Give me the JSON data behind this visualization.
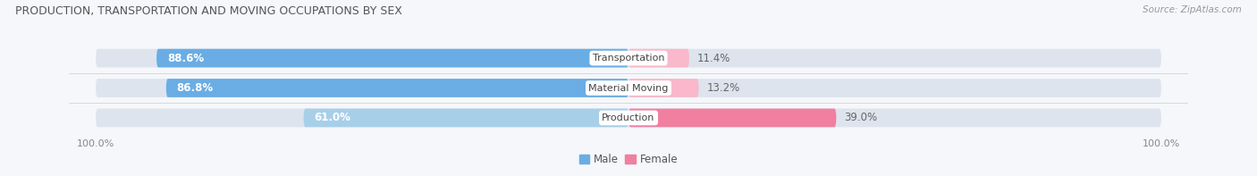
{
  "title": "PRODUCTION, TRANSPORTATION AND MOVING OCCUPATIONS BY SEX",
  "source": "Source: ZipAtlas.com",
  "categories": [
    "Transportation",
    "Material Moving",
    "Production"
  ],
  "male_pcts": [
    88.6,
    86.8,
    61.0
  ],
  "female_pcts": [
    11.4,
    13.2,
    39.0
  ],
  "male_color_dark": "#6aade4",
  "male_color_light": "#a8cfe8",
  "female_color_dark": "#f07fa0",
  "female_color_light": "#f9b8cc",
  "female_color_production": "#f07fa0",
  "bar_bg_color": "#dde4ee",
  "fig_bg_color": "#f5f7fa",
  "title_color": "#555555",
  "source_color": "#999999",
  "label_color_male": "#ffffff",
  "label_color_female": "#666666",
  "tick_label_color": "#888888",
  "figsize": [
    14.06,
    1.97
  ],
  "dpi": 100
}
